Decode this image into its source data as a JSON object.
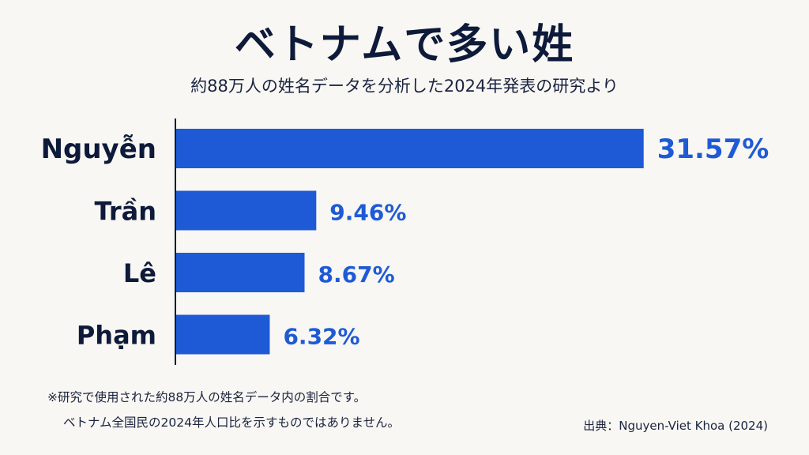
{
  "title": "ベトナムで多い姓",
  "subtitle": "約88万人の姓名データを分析した2024年発表の研究より",
  "colors": {
    "bar": "#1f5ad6",
    "value_label": "#1f5ad6",
    "category_label": "#0d1a3a",
    "axis": "#0d1a3a",
    "background": "#f8f7f3"
  },
  "chart_data": {
    "type": "bar",
    "orientation": "horizontal",
    "categories": [
      "Nguyễn",
      "Trần",
      "Lê",
      "Phạm"
    ],
    "values": [
      31.57,
      9.46,
      8.67,
      6.32
    ],
    "value_labels": [
      "31.57%",
      "9.46%",
      "8.67%",
      "6.32%"
    ],
    "unit": "%",
    "xlim": [
      0,
      35
    ],
    "grid": false,
    "legend": "none"
  },
  "footnote": {
    "line1": "※研究で使用された約88万人の姓名データ内の割合です。",
    "line2": "ベトナム全国民の2024年人口比を示すものではありません。"
  },
  "source": "出典：Nguyen-Viet Khoa (2024)"
}
